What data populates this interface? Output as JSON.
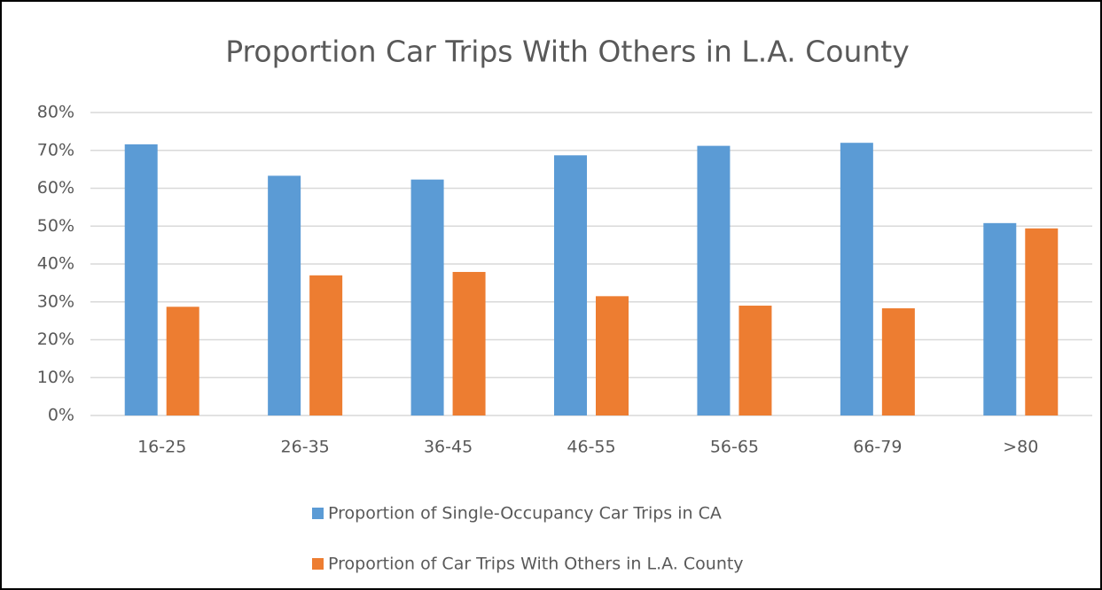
{
  "chart_data": {
    "type": "bar",
    "title": "Proportion Car Trips With Others in L.A. County",
    "categories": [
      "16-25",
      "26-35",
      "36-45",
      "46-55",
      "56-65",
      "66-79",
      ">80"
    ],
    "series": [
      {
        "name": "Proportion of Single-Occupancy Car Trips in CA",
        "color": "#5b9bd5",
        "values": [
          71.6,
          63.3,
          62.3,
          68.7,
          71.2,
          72.0,
          50.8
        ]
      },
      {
        "name": "Proportion of Car Trips With Others in L.A. County",
        "color": "#ed7d31",
        "values": [
          28.7,
          37.0,
          37.9,
          31.5,
          29.0,
          28.3,
          49.4
        ]
      }
    ],
    "ylim": [
      0,
      80
    ],
    "yticks": [
      {
        "value": 0,
        "label": "0%"
      },
      {
        "value": 10,
        "label": "10%"
      },
      {
        "value": 20,
        "label": "20%"
      },
      {
        "value": 30,
        "label": "30%"
      },
      {
        "value": 40,
        "label": "40%"
      },
      {
        "value": 50,
        "label": "50%"
      },
      {
        "value": 60,
        "label": "60%"
      },
      {
        "value": 70,
        "label": "70%"
      },
      {
        "value": 80,
        "label": "80%"
      }
    ],
    "grid": true,
    "legend": "bottom"
  }
}
